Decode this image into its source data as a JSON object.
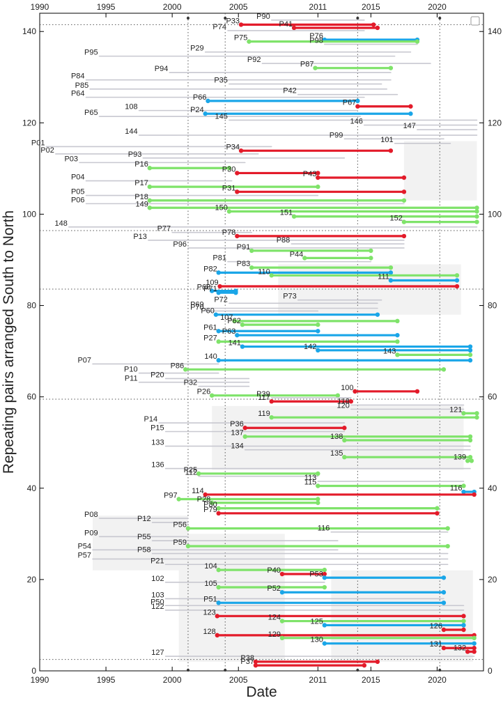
{
  "chart_data": {
    "type": "timeline",
    "title": "",
    "xlabel": "Date",
    "ylabel": "Repeating pairs arranged South to North",
    "xlim": [
      1990,
      2023.5
    ],
    "ylim": [
      0,
      144
    ],
    "x_ticks": [
      1990,
      1995,
      2000,
      2005,
      2011,
      2015,
      2020
    ],
    "y_ticks": [
      0,
      20,
      40,
      60,
      80,
      100,
      120,
      140
    ],
    "vertical_reference_lines": [
      2001.2,
      2004.0,
      2014.0,
      2020.2
    ],
    "horizontal_reference_lines": [
      2.5,
      59.5,
      83.6,
      96.4,
      141.5
    ],
    "colors": {
      "gray": "#c8c8d0",
      "green": "#7fe36a",
      "blue": "#1aa6e8",
      "red": "#e31b2a"
    },
    "pairs": [
      {
        "label": "P90",
        "y": 142.5,
        "start": 2007.5,
        "end": 2014.5,
        "kind": "gray"
      },
      {
        "label": "P33",
        "y": 141.5,
        "start": 2005.2,
        "end": 2015.2,
        "kind": "red"
      },
      {
        "label": "P41",
        "y": 140.8,
        "start": 2009.2,
        "end": 2015.5,
        "kind": "red"
      },
      {
        "label": "P74",
        "y": 140.2,
        "start": 2004.2,
        "end": 2014.5,
        "kind": "gray"
      },
      {
        "label": "P76",
        "y": 138.2,
        "start": 2011.5,
        "end": 2018.5,
        "kind": "blue"
      },
      {
        "label": "P75",
        "y": 137.8,
        "start": 2005.8,
        "end": 2018.5,
        "kind": "green"
      },
      {
        "label": "P98",
        "y": 137.2,
        "start": 2011.5,
        "end": 2018.5,
        "kind": "gray"
      },
      {
        "label": "P29",
        "y": 135.5,
        "start": 2002.5,
        "end": 2018.0,
        "kind": "gray"
      },
      {
        "label": "P95",
        "y": 134.6,
        "start": 1994.5,
        "end": 2016.8,
        "kind": "gray"
      },
      {
        "label": "P92",
        "y": 133.0,
        "start": 2006.8,
        "end": 2019.5,
        "kind": "gray"
      },
      {
        "label": "P87",
        "y": 132.0,
        "start": 2010.8,
        "end": 2016.5,
        "kind": "green"
      },
      {
        "label": "P94",
        "y": 131.0,
        "start": 1999.8,
        "end": 2016.5,
        "kind": "gray"
      },
      {
        "label": "P84",
        "y": 129.4,
        "start": 1993.5,
        "end": 2016.5,
        "kind": "gray"
      },
      {
        "label": "P35",
        "y": 128.5,
        "start": 2004.3,
        "end": 2015.8,
        "kind": "gray"
      },
      {
        "label": "P85",
        "y": 127.4,
        "start": 1993.8,
        "end": 2016.2,
        "kind": "gray"
      },
      {
        "label": "P42",
        "y": 126.2,
        "start": 2009.5,
        "end": 2017.0,
        "kind": "gray"
      },
      {
        "label": "P64",
        "y": 125.6,
        "start": 1993.5,
        "end": 2014.5,
        "kind": "gray"
      },
      {
        "label": "P66",
        "y": 124.8,
        "start": 2002.7,
        "end": 2014.0,
        "kind": "blue"
      },
      {
        "label": "P67",
        "y": 123.6,
        "start": 2014.0,
        "end": 2018.0,
        "kind": "red"
      },
      {
        "label": "108",
        "y": 122.7,
        "start": 1997.5,
        "end": 2014.0,
        "kind": "gray"
      },
      {
        "label": "P24",
        "y": 122.0,
        "start": 2002.5,
        "end": 2018.0,
        "kind": "blue"
      },
      {
        "label": "P65",
        "y": 121.4,
        "start": 1994.5,
        "end": 2014.2,
        "kind": "gray"
      },
      {
        "label": "145",
        "y": 120.6,
        "start": 2004.3,
        "end": 2023.0,
        "kind": "gray"
      },
      {
        "label": "146",
        "y": 119.5,
        "start": 2014.5,
        "end": 2023.0,
        "kind": "gray"
      },
      {
        "label": "147",
        "y": 118.5,
        "start": 2018.5,
        "end": 2023.0,
        "kind": "gray"
      },
      {
        "label": "144",
        "y": 117.3,
        "start": 1997.5,
        "end": 2023.0,
        "kind": "gray"
      },
      {
        "label": "P99",
        "y": 116.5,
        "start": 2013.0,
        "end": 2020.5,
        "kind": "gray"
      },
      {
        "label": "101",
        "y": 115.5,
        "start": 2016.8,
        "end": 2021.0,
        "kind": "gray"
      },
      {
        "label": "P01",
        "y": 114.8,
        "start": 1990.5,
        "end": 2007.5,
        "kind": "gray"
      },
      {
        "label": "P34",
        "y": 113.9,
        "start": 2005.2,
        "end": 2016.5,
        "kind": "red"
      },
      {
        "label": "P02",
        "y": 113.2,
        "start": 1991.2,
        "end": 2006.5,
        "kind": "gray"
      },
      {
        "label": "P93",
        "y": 112.3,
        "start": 1997.8,
        "end": 2013.0,
        "kind": "gray"
      },
      {
        "label": "P03",
        "y": 111.3,
        "start": 1993.0,
        "end": 2005.5,
        "kind": "gray"
      },
      {
        "label": "P16",
        "y": 110.1,
        "start": 1998.3,
        "end": 2004.3,
        "kind": "green"
      },
      {
        "label": "P30",
        "y": 109.0,
        "start": 2004.9,
        "end": 2011.0,
        "kind": "red"
      },
      {
        "label": "P43",
        "y": 108.0,
        "start": 2011.0,
        "end": 2017.5,
        "kind": "red"
      },
      {
        "label": "P04",
        "y": 107.3,
        "start": 1993.5,
        "end": 2004.5,
        "kind": "gray"
      },
      {
        "label": "P17",
        "y": 106.0,
        "start": 1998.3,
        "end": 2011.0,
        "kind": "green"
      },
      {
        "label": "P31",
        "y": 104.9,
        "start": 2004.9,
        "end": 2017.5,
        "kind": "red"
      },
      {
        "label": "P05",
        "y": 104.1,
        "start": 1993.5,
        "end": 2011.0,
        "kind": "gray"
      },
      {
        "label": "P18",
        "y": 103.0,
        "start": 1998.3,
        "end": 2017.5,
        "kind": "green"
      },
      {
        "label": "P06",
        "y": 102.3,
        "start": 1993.5,
        "end": 2017.5,
        "kind": "gray"
      },
      {
        "label": "149",
        "y": 101.4,
        "start": 1998.3,
        "end": 2023.0,
        "kind": "green"
      },
      {
        "label": "150",
        "y": 100.6,
        "start": 2004.3,
        "end": 2023.0,
        "kind": "green"
      },
      {
        "label": "151",
        "y": 99.5,
        "start": 2009.2,
        "end": 2023.0,
        "kind": "green"
      },
      {
        "label": "152",
        "y": 98.3,
        "start": 2017.5,
        "end": 2023.0,
        "kind": "green"
      },
      {
        "label": "148",
        "y": 97.2,
        "start": 1992.2,
        "end": 2023.0,
        "kind": "gray"
      },
      {
        "label": "P77",
        "y": 96.0,
        "start": 2000.0,
        "end": 2006.0,
        "kind": "gray"
      },
      {
        "label": "P78",
        "y": 95.2,
        "start": 2004.9,
        "end": 2017.5,
        "kind": "red"
      },
      {
        "label": "P13",
        "y": 94.3,
        "start": 1998.2,
        "end": 2017.5,
        "kind": "gray"
      },
      {
        "label": "P88",
        "y": 93.5,
        "start": 2009.0,
        "end": 2017.5,
        "kind": "gray"
      },
      {
        "label": "P96",
        "y": 92.6,
        "start": 2001.2,
        "end": 2017.5,
        "kind": "gray"
      },
      {
        "label": "P91",
        "y": 92.0,
        "start": 2006.0,
        "end": 2015.0,
        "kind": "green"
      },
      {
        "label": "P44",
        "y": 90.4,
        "start": 2010.0,
        "end": 2015.0,
        "kind": "green"
      },
      {
        "label": "P81",
        "y": 89.6,
        "start": 2004.2,
        "end": 2015.0,
        "kind": "gray"
      },
      {
        "label": "P83",
        "y": 88.3,
        "start": 2006.0,
        "end": 2016.5,
        "kind": "green"
      },
      {
        "label": "P82",
        "y": 87.2,
        "start": 2003.5,
        "end": 2016.5,
        "kind": "blue"
      },
      {
        "label": "110",
        "y": 86.6,
        "start": 2007.5,
        "end": 2021.5,
        "kind": "green"
      },
      {
        "label": "111",
        "y": 85.5,
        "start": 2016.5,
        "end": 2021.5,
        "kind": "blue"
      },
      {
        "label": "109",
        "y": 84.2,
        "start": 2003.6,
        "end": 2021.5,
        "kind": "red"
      },
      {
        "label": "P68",
        "y": 83.2,
        "start": 2003.0,
        "end": 2004.8,
        "kind": "blue"
      },
      {
        "label": "P71",
        "y": 82.8,
        "start": 2003.5,
        "end": 2004.8,
        "kind": "blue"
      },
      {
        "label": "P73",
        "y": 81.2,
        "start": 2009.5,
        "end": 2015.8,
        "kind": "gray"
      },
      {
        "label": "P72",
        "y": 80.5,
        "start": 2004.3,
        "end": 2015.5,
        "kind": "gray"
      },
      {
        "label": "P69",
        "y": 79.4,
        "start": 2002.5,
        "end": 2015.5,
        "kind": "gray"
      },
      {
        "label": "P70",
        "y": 78.8,
        "start": 2002.5,
        "end": 2011.0,
        "kind": "gray"
      },
      {
        "label": "P60",
        "y": 78.0,
        "start": 2003.3,
        "end": 2015.5,
        "kind": "blue"
      },
      {
        "label": "107",
        "y": 76.6,
        "start": 2004.7,
        "end": 2017.0,
        "kind": "green"
      },
      {
        "label": "P62",
        "y": 75.8,
        "start": 2005.3,
        "end": 2011.0,
        "kind": "green"
      },
      {
        "label": "P61",
        "y": 74.4,
        "start": 2003.5,
        "end": 2011.0,
        "kind": "blue"
      },
      {
        "label": "P63",
        "y": 73.5,
        "start": 2004.9,
        "end": 2017.0,
        "kind": "blue"
      },
      {
        "label": "P27",
        "y": 72.1,
        "start": 2003.5,
        "end": 2017.0,
        "kind": "green"
      },
      {
        "label": "141",
        "y": 71.0,
        "start": 2005.3,
        "end": 2022.5,
        "kind": "blue"
      },
      {
        "label": "142",
        "y": 70.2,
        "start": 2011.0,
        "end": 2022.5,
        "kind": "blue"
      },
      {
        "label": "143",
        "y": 69.2,
        "start": 2017.0,
        "end": 2022.5,
        "kind": "green"
      },
      {
        "label": "140",
        "y": 68.0,
        "start": 2003.5,
        "end": 2022.5,
        "kind": "blue"
      },
      {
        "label": "P07",
        "y": 67.2,
        "start": 1994.0,
        "end": 2003.5,
        "kind": "gray"
      },
      {
        "label": "P86",
        "y": 66.0,
        "start": 2001.0,
        "end": 2020.5,
        "kind": "green"
      },
      {
        "label": "P10",
        "y": 65.2,
        "start": 1997.5,
        "end": 2003.5,
        "kind": "gray"
      },
      {
        "label": "P20",
        "y": 64.0,
        "start": 1999.5,
        "end": 2005.8,
        "kind": "gray"
      },
      {
        "label": "P11",
        "y": 63.2,
        "start": 1997.5,
        "end": 2005.8,
        "kind": "gray"
      },
      {
        "label": "P32",
        "y": 62.3,
        "start": 2002.0,
        "end": 2005.8,
        "kind": "gray"
      },
      {
        "label": "100",
        "y": 61.2,
        "start": 2013.8,
        "end": 2018.5,
        "kind": "red"
      },
      {
        "label": "P26",
        "y": 60.3,
        "start": 2003.0,
        "end": 2012.5,
        "kind": "green"
      },
      {
        "label": "P39",
        "y": 59.8,
        "start": 2007.5,
        "end": 2013.5,
        "kind": "gray"
      },
      {
        "label": "117",
        "y": 59.0,
        "start": 2007.5,
        "end": 2013.5,
        "kind": "red"
      },
      {
        "label": "118",
        "y": 58.2,
        "start": 2013.5,
        "end": 2022.0,
        "kind": "gray"
      },
      {
        "label": "120",
        "y": 57.3,
        "start": 2013.5,
        "end": 2022.0,
        "kind": "gray"
      },
      {
        "label": "121",
        "y": 56.4,
        "start": 2022.0,
        "end": 2023.0,
        "kind": "green"
      },
      {
        "label": "119",
        "y": 55.5,
        "start": 2007.5,
        "end": 2023.0,
        "kind": "green"
      },
      {
        "label": "P14",
        "y": 54.3,
        "start": 1999.0,
        "end": 2013.0,
        "kind": "gray"
      },
      {
        "label": "P36",
        "y": 53.2,
        "start": 2005.5,
        "end": 2013.0,
        "kind": "red"
      },
      {
        "label": "P15",
        "y": 52.4,
        "start": 1999.5,
        "end": 2013.0,
        "kind": "gray"
      },
      {
        "label": "137",
        "y": 51.3,
        "start": 2005.5,
        "end": 2022.5,
        "kind": "green"
      },
      {
        "label": "138",
        "y": 50.5,
        "start": 2013.0,
        "end": 2022.5,
        "kind": "green"
      },
      {
        "label": "133",
        "y": 49.2,
        "start": 1999.5,
        "end": 2022.5,
        "kind": "gray"
      },
      {
        "label": "134",
        "y": 48.4,
        "start": 2005.5,
        "end": 2022.5,
        "kind": "gray"
      },
      {
        "label": "135",
        "y": 46.8,
        "start": 2013.0,
        "end": 2022.5,
        "kind": "green"
      },
      {
        "label": "139",
        "y": 46.0,
        "start": 2022.3,
        "end": 2022.6,
        "kind": "green"
      },
      {
        "label": "136",
        "y": 44.3,
        "start": 1999.5,
        "end": 2022.5,
        "kind": "gray"
      },
      {
        "label": "P25",
        "y": 43.2,
        "start": 2002.0,
        "end": 2011.0,
        "kind": "green"
      },
      {
        "label": "112",
        "y": 42.6,
        "start": 2002.0,
        "end": 2011.0,
        "kind": "gray"
      },
      {
        "label": "113",
        "y": 41.5,
        "start": 2011.0,
        "end": 2022.0,
        "kind": "gray"
      },
      {
        "label": "115",
        "y": 40.5,
        "start": 2011.0,
        "end": 2022.0,
        "kind": "green"
      },
      {
        "label": "116",
        "y": 39.2,
        "start": 2022.0,
        "end": 2022.8,
        "kind": "blue"
      },
      {
        "label": "114",
        "y": 38.6,
        "start": 2002.5,
        "end": 2022.8,
        "kind": "red"
      },
      {
        "label": "P97",
        "y": 37.6,
        "start": 2000.5,
        "end": 2011.0,
        "kind": "green"
      },
      {
        "label": "P28",
        "y": 36.8,
        "start": 2003.0,
        "end": 2011.0,
        "kind": "green"
      },
      {
        "label": "P80",
        "y": 35.6,
        "start": 2003.5,
        "end": 2020.0,
        "kind": "green"
      },
      {
        "label": "P79",
        "y": 34.5,
        "start": 2003.5,
        "end": 2020.0,
        "kind": "red"
      },
      {
        "label": "P08",
        "y": 33.4,
        "start": 1994.5,
        "end": 2001.2,
        "kind": "gray"
      },
      {
        "label": "P12",
        "y": 32.5,
        "start": 1998.5,
        "end": 2001.2,
        "kind": "gray"
      },
      {
        "label": "P56",
        "y": 31.2,
        "start": 2001.2,
        "end": 2020.8,
        "kind": "green"
      },
      {
        "label": "116",
        "y": 30.4,
        "start": 2012.0,
        "end": 2020.8,
        "kind": "gray"
      },
      {
        "label": "P09",
        "y": 29.4,
        "start": 1994.5,
        "end": 2001.2,
        "kind": "gray"
      },
      {
        "label": "P55",
        "y": 28.5,
        "start": 1998.5,
        "end": 2012.5,
        "kind": "gray"
      },
      {
        "label": "P59",
        "y": 27.3,
        "start": 2001.2,
        "end": 2020.8,
        "kind": "green"
      },
      {
        "label": "P54",
        "y": 26.5,
        "start": 1994.0,
        "end": 2012.5,
        "kind": "gray"
      },
      {
        "label": "P58",
        "y": 25.7,
        "start": 1998.5,
        "end": 2020.8,
        "kind": "gray"
      },
      {
        "label": "P57",
        "y": 24.5,
        "start": 1994.0,
        "end": 2020.8,
        "kind": "gray"
      },
      {
        "label": "P21",
        "y": 23.3,
        "start": 1999.5,
        "end": 2020.8,
        "kind": "gray"
      },
      {
        "label": "104",
        "y": 22.1,
        "start": 2003.5,
        "end": 2011.5,
        "kind": "green"
      },
      {
        "label": "P40",
        "y": 21.2,
        "start": 2008.3,
        "end": 2011.5,
        "kind": "red"
      },
      {
        "label": "P53",
        "y": 20.4,
        "start": 2011.5,
        "end": 2020.5,
        "kind": "blue"
      },
      {
        "label": "102",
        "y": 19.4,
        "start": 1999.5,
        "end": 2011.5,
        "kind": "gray"
      },
      {
        "label": "105",
        "y": 18.3,
        "start": 2003.5,
        "end": 2011.5,
        "kind": "green"
      },
      {
        "label": "P52",
        "y": 17.2,
        "start": 2008.3,
        "end": 2020.5,
        "kind": "blue"
      },
      {
        "label": "103",
        "y": 15.8,
        "start": 1999.5,
        "end": 2020.5,
        "kind": "gray"
      },
      {
        "label": "P51",
        "y": 14.9,
        "start": 2003.5,
        "end": 2020.5,
        "kind": "blue"
      },
      {
        "label": "P50",
        "y": 14.3,
        "start": 1999.5,
        "end": 2022.0,
        "kind": "gray"
      },
      {
        "label": "122",
        "y": 13.3,
        "start": 1999.5,
        "end": 2022.0,
        "kind": "gray"
      },
      {
        "label": "123",
        "y": 12.0,
        "start": 2003.4,
        "end": 2022.0,
        "kind": "red"
      },
      {
        "label": "124",
        "y": 10.9,
        "start": 2008.3,
        "end": 2022.0,
        "kind": "green"
      },
      {
        "label": "125",
        "y": 10.0,
        "start": 2011.5,
        "end": 2022.0,
        "kind": "blue"
      },
      {
        "label": "126",
        "y": 9.0,
        "start": 2020.5,
        "end": 2022.0,
        "kind": "red"
      },
      {
        "label": "128",
        "y": 7.8,
        "start": 2003.4,
        "end": 2022.8,
        "kind": "red"
      },
      {
        "label": "129",
        "y": 7.2,
        "start": 2008.3,
        "end": 2022.8,
        "kind": "green"
      },
      {
        "label": "130",
        "y": 6.0,
        "start": 2011.5,
        "end": 2022.8,
        "kind": "blue"
      },
      {
        "label": "131",
        "y": 5.0,
        "start": 2020.5,
        "end": 2022.8,
        "kind": "red"
      },
      {
        "label": "132",
        "y": 4.2,
        "start": 2022.3,
        "end": 2022.8,
        "kind": "red"
      },
      {
        "label": "127",
        "y": 3.2,
        "start": 1999.5,
        "end": 2022.8,
        "kind": "gray"
      },
      {
        "label": "P38",
        "y": 2.0,
        "start": 2006.3,
        "end": 2015.5,
        "kind": "red"
      },
      {
        "label": "P37",
        "y": 1.2,
        "start": 2006.3,
        "end": 2014.5,
        "kind": "red"
      }
    ]
  }
}
